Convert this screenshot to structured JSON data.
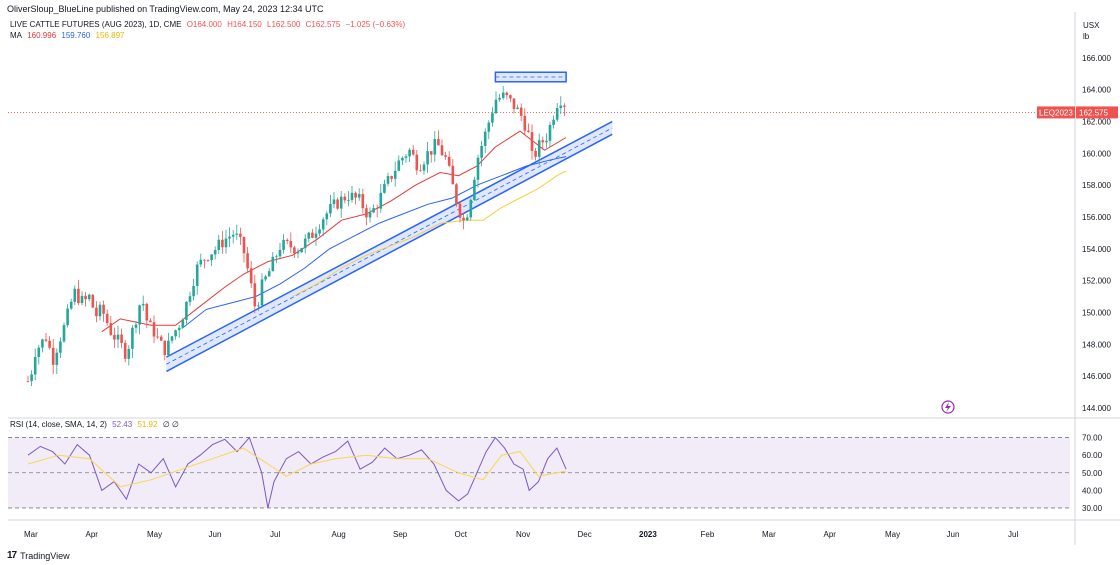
{
  "header": {
    "published": "OliverSloup_BlueLine published on TradingView.com, May 24, 2023 12:34 UTC",
    "instrument": "LIVE CATTLE FUTURES (AUG 2023), 1D, CME",
    "o": "O164.000",
    "h": "H164.150",
    "l": "L162.500",
    "c": "C162.575",
    "chg": "−1.025 (−0.63%)",
    "ma_label": "MA",
    "ma_vals": [
      "160.996",
      "159.760",
      "156.897"
    ],
    "rsi_label": "RSI (14, close, SMA, 14, 2)",
    "rsi_val": "52.43",
    "rsi_ma": "51.92",
    "rsi_extra": "∅ ∅"
  },
  "unit": [
    "USX",
    "lb"
  ],
  "footer": {
    "brand": "TradingView"
  },
  "colors": {
    "up": "#26a69a",
    "down": "#ef5350",
    "ma1": "#e53935",
    "ma2": "#2962ff",
    "ma3": "#f4d03f",
    "rsi": "#7e57c2",
    "rsi_ma": "#f9d74e",
    "rsi_band": "#ede7f6",
    "channel": "#2962ff",
    "price_tag": "#ef5350"
  },
  "chart_data": {
    "type": "candlestick",
    "symbol_tag": "LEQ2023",
    "last_price": "162.575",
    "price_axis": {
      "ylim": [
        143.5,
        167
      ],
      "ticks": [
        "144.000",
        "146.000",
        "148.000",
        "150.000",
        "152.000",
        "154.000",
        "156.000",
        "158.000",
        "160.000",
        "162.000",
        "164.000",
        "166.000"
      ]
    },
    "rsi_axis": {
      "ylim": [
        26,
        76
      ],
      "ticks": [
        "30.00",
        "40.00",
        "50.00",
        "60.00",
        "70.00"
      ],
      "levels": [
        70,
        50,
        30
      ]
    },
    "x_labels": [
      "Mar",
      "Apr",
      "May",
      "Jun",
      "Jul",
      "Aug",
      "Sep",
      "Oct",
      "Nov",
      "Dec",
      "2023",
      "Feb",
      "Mar",
      "Apr",
      "May",
      "Jun",
      "Jul"
    ],
    "close_series": [
      [
        0,
        145.7
      ],
      [
        0.05,
        146.1
      ],
      [
        0.1,
        147.5
      ],
      [
        0.2,
        148.0
      ],
      [
        0.3,
        148.5
      ],
      [
        0.4,
        147.0
      ],
      [
        0.5,
        148.2
      ],
      [
        0.6,
        149.2
      ],
      [
        0.75,
        151.3
      ],
      [
        0.9,
        150.6
      ],
      [
        1.0,
        151.0
      ],
      [
        1.1,
        149.8
      ],
      [
        1.2,
        150.2
      ],
      [
        1.35,
        148.8
      ],
      [
        1.5,
        148.0
      ],
      [
        1.6,
        147.4
      ],
      [
        1.75,
        149.6
      ],
      [
        1.85,
        151.0
      ],
      [
        1.95,
        149.2
      ],
      [
        2.05,
        148.8
      ],
      [
        2.15,
        148.0
      ],
      [
        2.25,
        147.6
      ],
      [
        2.35,
        148.6
      ],
      [
        2.45,
        149.2
      ],
      [
        2.55,
        150.2
      ],
      [
        2.65,
        151.6
      ],
      [
        2.75,
        152.8
      ],
      [
        2.9,
        153.6
      ],
      [
        3.05,
        154.0
      ],
      [
        3.2,
        154.6
      ],
      [
        3.35,
        155.0
      ],
      [
        3.5,
        154.0
      ],
      [
        3.6,
        152.2
      ],
      [
        3.7,
        150.2
      ],
      [
        3.8,
        151.6
      ],
      [
        3.95,
        152.8
      ],
      [
        4.1,
        154.2
      ],
      [
        4.25,
        154.2
      ],
      [
        4.4,
        154.0
      ],
      [
        4.6,
        154.8
      ],
      [
        4.8,
        156.0
      ],
      [
        5.0,
        156.8
      ],
      [
        5.2,
        157.4
      ],
      [
        5.4,
        157.0
      ],
      [
        5.55,
        156.0
      ],
      [
        5.7,
        157.0
      ],
      [
        5.85,
        158.2
      ],
      [
        6.05,
        159.6
      ],
      [
        6.2,
        160.2
      ],
      [
        6.35,
        159.2
      ],
      [
        6.5,
        160.0
      ],
      [
        6.65,
        160.6
      ],
      [
        6.8,
        159.6
      ],
      [
        6.9,
        158.0
      ],
      [
        7.0,
        156.6
      ],
      [
        7.1,
        155.6
      ],
      [
        7.2,
        157.4
      ],
      [
        7.3,
        159.6
      ],
      [
        7.45,
        161.4
      ],
      [
        7.6,
        163.4
      ],
      [
        7.75,
        163.6
      ],
      [
        7.9,
        163.0
      ],
      [
        8.05,
        162.2
      ],
      [
        8.15,
        161.0
      ],
      [
        8.2,
        159.6
      ],
      [
        8.3,
        160.4
      ],
      [
        8.45,
        161.2
      ],
      [
        8.6,
        163.2
      ],
      [
        8.7,
        163.6
      ],
      [
        8.75,
        162.575
      ]
    ],
    "ma_series": [
      {
        "name": "MA",
        "value": "160.996",
        "points": [
          [
            1.2,
            148.8
          ],
          [
            1.5,
            149.6
          ],
          [
            2.0,
            149.2
          ],
          [
            2.4,
            149.2
          ],
          [
            2.8,
            150.4
          ],
          [
            3.2,
            151.6
          ],
          [
            3.5,
            152.4
          ],
          [
            3.9,
            153.2
          ],
          [
            4.3,
            153.6
          ],
          [
            4.7,
            154.6
          ],
          [
            5.1,
            155.8
          ],
          [
            5.5,
            156.2
          ],
          [
            5.9,
            157.0
          ],
          [
            6.3,
            158.0
          ],
          [
            6.7,
            158.8
          ],
          [
            7.0,
            158.6
          ],
          [
            7.3,
            159.2
          ],
          [
            7.6,
            160.4
          ],
          [
            8.0,
            161.4
          ],
          [
            8.4,
            160.2
          ],
          [
            8.75,
            161.0
          ]
        ]
      },
      {
        "name": "MA",
        "value": "159.760",
        "points": [
          [
            2.5,
            149.0
          ],
          [
            2.9,
            150.2
          ],
          [
            3.3,
            150.6
          ],
          [
            3.7,
            151.0
          ],
          [
            4.1,
            151.8
          ],
          [
            4.5,
            152.8
          ],
          [
            4.9,
            154.0
          ],
          [
            5.3,
            154.8
          ],
          [
            5.7,
            155.6
          ],
          [
            6.1,
            156.2
          ],
          [
            6.5,
            156.8
          ],
          [
            6.9,
            157.2
          ],
          [
            7.3,
            158.0
          ],
          [
            7.7,
            158.6
          ],
          [
            8.1,
            159.2
          ],
          [
            8.5,
            159.6
          ],
          [
            8.75,
            159.8
          ]
        ]
      },
      {
        "name": "MA",
        "value": "156.897",
        "points": [
          [
            4.3,
            151.0
          ],
          [
            4.7,
            151.8
          ],
          [
            5.1,
            152.8
          ],
          [
            5.5,
            153.6
          ],
          [
            5.9,
            154.2
          ],
          [
            6.3,
            154.8
          ],
          [
            6.7,
            155.6
          ],
          [
            7.1,
            155.8
          ],
          [
            7.4,
            155.8
          ],
          [
            7.7,
            156.6
          ],
          [
            8.0,
            157.2
          ],
          [
            8.3,
            157.8
          ],
          [
            8.6,
            158.6
          ],
          [
            8.75,
            158.9
          ]
        ]
      }
    ],
    "channel": {
      "lower_start": [
        2.25,
        146.3
      ],
      "lower_end": [
        9.5,
        161.2
      ],
      "upper_start": [
        2.25,
        147.2
      ],
      "upper_end": [
        9.5,
        162.0
      ]
    },
    "resistance_box": {
      "x": [
        7.6,
        8.75
      ],
      "y": [
        164.5,
        165.1
      ]
    },
    "rsi_series": [
      [
        0,
        60
      ],
      [
        0.2,
        65
      ],
      [
        0.4,
        62
      ],
      [
        0.6,
        55
      ],
      [
        0.8,
        66
      ],
      [
        1.0,
        60
      ],
      [
        1.2,
        40
      ],
      [
        1.4,
        45
      ],
      [
        1.6,
        35
      ],
      [
        1.8,
        55
      ],
      [
        2.0,
        50
      ],
      [
        2.2,
        58
      ],
      [
        2.4,
        42
      ],
      [
        2.6,
        55
      ],
      [
        2.8,
        60
      ],
      [
        3.0,
        66
      ],
      [
        3.2,
        69
      ],
      [
        3.4,
        62
      ],
      [
        3.6,
        70
      ],
      [
        3.8,
        50
      ],
      [
        3.9,
        30
      ],
      [
        4.0,
        45
      ],
      [
        4.2,
        58
      ],
      [
        4.4,
        62
      ],
      [
        4.6,
        55
      ],
      [
        4.8,
        59
      ],
      [
        5.0,
        62
      ],
      [
        5.2,
        68
      ],
      [
        5.4,
        52
      ],
      [
        5.6,
        56
      ],
      [
        5.8,
        64
      ],
      [
        6.0,
        58
      ],
      [
        6.2,
        60
      ],
      [
        6.4,
        63
      ],
      [
        6.6,
        55
      ],
      [
        6.8,
        40
      ],
      [
        7.0,
        34
      ],
      [
        7.15,
        38
      ],
      [
        7.3,
        50
      ],
      [
        7.45,
        62
      ],
      [
        7.6,
        70
      ],
      [
        7.75,
        64
      ],
      [
        7.9,
        55
      ],
      [
        8.05,
        52
      ],
      [
        8.15,
        40
      ],
      [
        8.3,
        45
      ],
      [
        8.45,
        58
      ],
      [
        8.6,
        64
      ],
      [
        8.75,
        52
      ]
    ],
    "rsi_ma_series": [
      [
        0,
        55
      ],
      [
        0.5,
        60
      ],
      [
        1.0,
        58
      ],
      [
        1.5,
        42
      ],
      [
        2.0,
        46
      ],
      [
        2.5,
        52
      ],
      [
        3.0,
        58
      ],
      [
        3.5,
        64
      ],
      [
        3.9,
        55
      ],
      [
        4.2,
        48
      ],
      [
        4.6,
        55
      ],
      [
        5.0,
        58
      ],
      [
        5.5,
        60
      ],
      [
        6.0,
        58
      ],
      [
        6.5,
        58
      ],
      [
        7.0,
        50
      ],
      [
        7.4,
        46
      ],
      [
        7.7,
        60
      ],
      [
        8.0,
        62
      ],
      [
        8.3,
        48
      ],
      [
        8.75,
        51
      ]
    ]
  }
}
